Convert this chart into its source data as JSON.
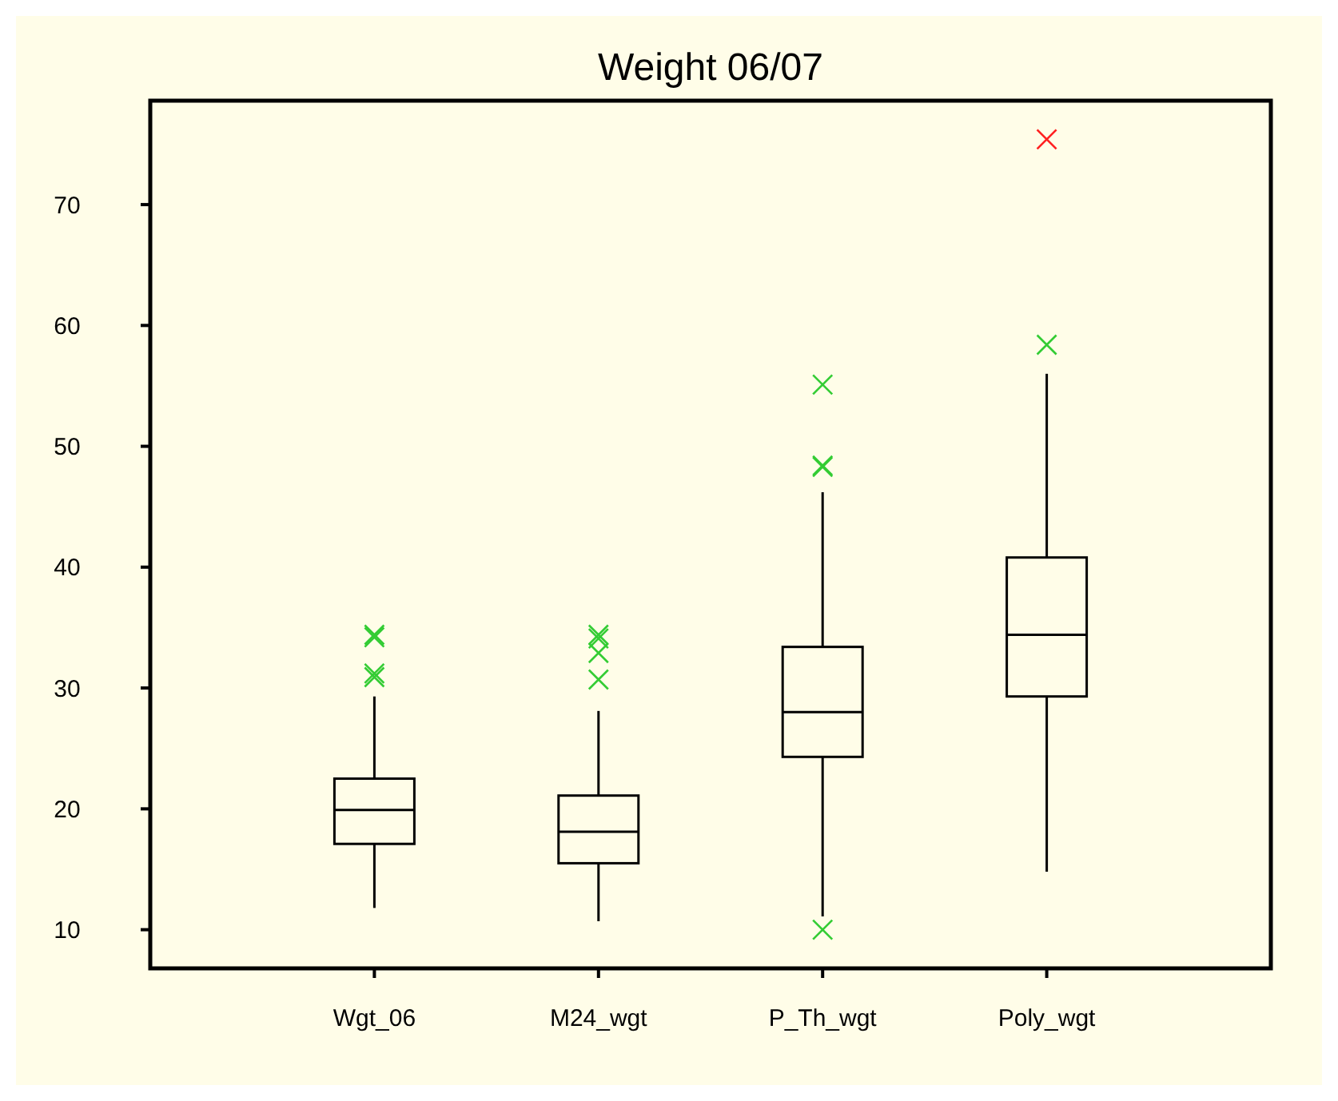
{
  "chart_data": {
    "type": "box",
    "title": "Weight 06/07",
    "categories": [
      "Wgt_06",
      "M24_wgt",
      "P_Th_wgt",
      "Poly_wgt"
    ],
    "ylim": [
      6.8,
      78.6
    ],
    "yticks": [
      10,
      20,
      30,
      40,
      50,
      60,
      70
    ],
    "marker": "cross",
    "series": [
      {
        "color": "#000000",
        "boxes": [
          {
            "low": 11.8,
            "q1": 17.1,
            "median": 19.9,
            "q3": 22.5,
            "high": 29.3
          },
          {
            "low": 10.7,
            "q1": 15.5,
            "median": 18.1,
            "q3": 21.1,
            "high": 28.1
          },
          {
            "low": 11.1,
            "q1": 24.3,
            "median": 28.0,
            "q3": 33.4,
            "high": 46.2
          },
          {
            "low": 14.8,
            "q1": 29.3,
            "median": 34.4,
            "q3": 40.8,
            "high": 56.0
          }
        ]
      },
      {
        "type": "scatter",
        "color": "#33cc33",
        "x": [
          "Wgt_06",
          "Wgt_06",
          "Wgt_06",
          "Wgt_06",
          "M24_wgt",
          "M24_wgt",
          "M24_wgt",
          "M24_wgt",
          "P_Th_wgt",
          "P_Th_wgt",
          "P_Th_wgt",
          "P_Th_wgt",
          "Poly_wgt"
        ],
        "values": [
          34.4,
          34.2,
          31.2,
          30.9,
          34.4,
          34.1,
          32.9,
          30.7,
          55.1,
          48.4,
          48.3,
          10.0,
          58.4
        ]
      },
      {
        "type": "scatter",
        "color": "#ff2020",
        "x": [
          "Poly_wgt"
        ],
        "values": [
          75.4
        ]
      }
    ]
  }
}
